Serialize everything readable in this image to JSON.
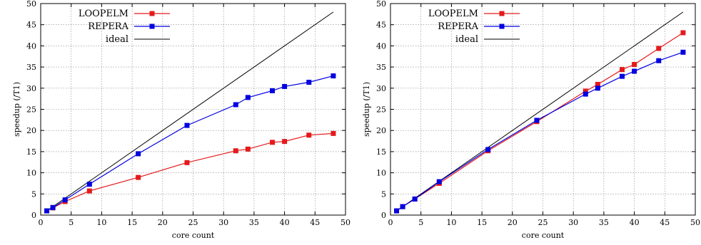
{
  "chart_data": [
    {
      "type": "line",
      "title": "",
      "xlabel": "core count",
      "ylabel": "speedup (/T1)",
      "xlim": [
        0,
        50
      ],
      "ylim": [
        0,
        50
      ],
      "xticks": [
        0,
        5,
        10,
        15,
        20,
        25,
        30,
        35,
        40,
        45,
        50
      ],
      "yticks": [
        0,
        5,
        10,
        15,
        20,
        25,
        30,
        35,
        40,
        45,
        50
      ],
      "grid": true,
      "legend_position": "top-left",
      "series": [
        {
          "name": "LOOPELM",
          "color": "#e41a1c",
          "marker": "square",
          "x": [
            1,
            2,
            4,
            8,
            16,
            24,
            32,
            34,
            38,
            40,
            44,
            48
          ],
          "y": [
            1,
            1.7,
            3.2,
            5.7,
            8.9,
            12.4,
            15.2,
            15.6,
            17.2,
            17.4,
            18.9,
            19.3
          ]
        },
        {
          "name": "REPERA",
          "color": "#0000e0",
          "marker": "square",
          "x": [
            1,
            2,
            4,
            8,
            16,
            24,
            32,
            34,
            38,
            40,
            44,
            48
          ],
          "y": [
            1,
            1.8,
            3.6,
            7.3,
            14.5,
            21.2,
            26.1,
            27.8,
            29.4,
            30.4,
            31.4,
            32.9
          ]
        },
        {
          "name": "ideal",
          "color": "#000000",
          "marker": "none",
          "x": [
            1,
            48
          ],
          "y": [
            1,
            48
          ]
        }
      ]
    },
    {
      "type": "line",
      "title": "",
      "xlabel": "core count",
      "ylabel": "speedup (/T1)",
      "xlim": [
        0,
        50
      ],
      "ylim": [
        0,
        50
      ],
      "xticks": [
        0,
        5,
        10,
        15,
        20,
        25,
        30,
        35,
        40,
        45,
        50
      ],
      "yticks": [
        0,
        5,
        10,
        15,
        20,
        25,
        30,
        35,
        40,
        45,
        50
      ],
      "grid": true,
      "legend_position": "top-left",
      "series": [
        {
          "name": "LOOPELM",
          "color": "#e41a1c",
          "marker": "square",
          "x": [
            1,
            2,
            4,
            8,
            16,
            24,
            32,
            34,
            38,
            40,
            44,
            48
          ],
          "y": [
            1,
            2,
            3.8,
            7.5,
            15.2,
            22.1,
            29.3,
            30.9,
            34.4,
            35.6,
            39.4,
            43.1
          ]
        },
        {
          "name": "REPERA",
          "color": "#0000e0",
          "marker": "square",
          "x": [
            1,
            2,
            4,
            8,
            16,
            24,
            32,
            34,
            38,
            40,
            44,
            48
          ],
          "y": [
            1,
            2,
            3.8,
            7.9,
            15.5,
            22.4,
            28.6,
            30.0,
            32.8,
            34.0,
            36.5,
            38.5
          ]
        },
        {
          "name": "ideal",
          "color": "#000000",
          "marker": "none",
          "x": [
            1,
            48
          ],
          "y": [
            1,
            48
          ]
        }
      ]
    }
  ]
}
